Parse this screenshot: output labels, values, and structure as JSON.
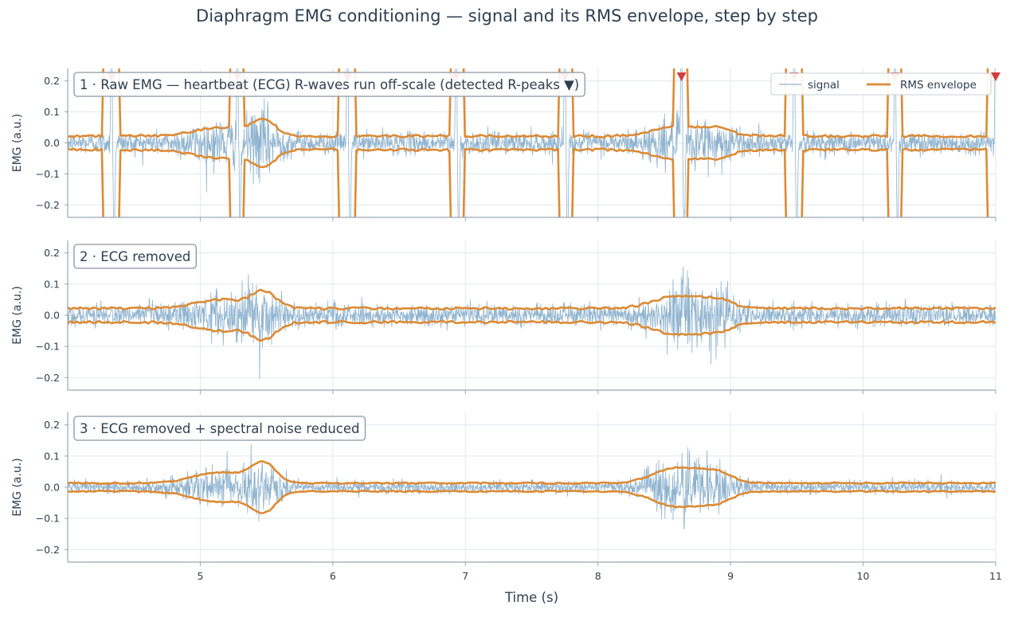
{
  "title": "Diaphragm EMG conditioning — signal and its RMS envelope, step by step",
  "colors": {
    "signal": "#8fb3cf",
    "envelope": "#dd8a34",
    "rpeak": "#d33d3d",
    "text": "#2e3f52",
    "grid": "#e3e8ee",
    "axis": "#9aa7b3"
  },
  "legend": {
    "signal_label": "signal",
    "envelope_label": "RMS envelope",
    "placement": "top-right (panel 1)"
  },
  "chart_data": [
    {
      "type": "line",
      "panel_label": "1 · Raw EMG — heartbeat (ECG) R-waves run off-scale (detected R-peaks ▼)",
      "ylabel": "EMG (a.u.)",
      "xlabel": "",
      "xlim": [
        4,
        11
      ],
      "ylim": [
        -0.24,
        0.24
      ],
      "yticks": [
        -0.2,
        -0.1,
        0.0,
        0.1,
        0.2
      ],
      "ytick_labels": [
        "−0.2",
        "−0.1",
        "0.0",
        "0.1",
        "0.2"
      ],
      "grid": true,
      "noise_scale": 0.018,
      "env_base": 0.022,
      "bursts": [
        {
          "center": 5.15,
          "width": 0.28,
          "amp": 0.028
        },
        {
          "center": 5.48,
          "width": 0.13,
          "amp": 0.045
        },
        {
          "center": 8.6,
          "width": 0.25,
          "amp": 0.03
        },
        {
          "center": 8.9,
          "width": 0.16,
          "amp": 0.022
        }
      ],
      "r_peaks": [
        4.33,
        5.28,
        6.11,
        6.93,
        7.75,
        8.63,
        9.48,
        10.24,
        11.0
      ],
      "series": [
        {
          "name": "signal",
          "role": "signal"
        },
        {
          "name": "RMS envelope",
          "role": "envelope"
        }
      ]
    },
    {
      "type": "line",
      "panel_label": "2 · ECG removed",
      "ylabel": "EMG (a.u.)",
      "xlabel": "",
      "xlim": [
        4,
        11
      ],
      "ylim": [
        -0.24,
        0.24
      ],
      "yticks": [
        -0.2,
        -0.1,
        0.0,
        0.1,
        0.2
      ],
      "ytick_labels": [
        "−0.2",
        "−0.1",
        "0.0",
        "0.1",
        "0.2"
      ],
      "grid": true,
      "noise_scale": 0.018,
      "env_base": 0.022,
      "bursts": [
        {
          "center": 5.15,
          "width": 0.28,
          "amp": 0.028
        },
        {
          "center": 5.48,
          "width": 0.13,
          "amp": 0.05
        },
        {
          "center": 8.6,
          "width": 0.25,
          "amp": 0.04
        },
        {
          "center": 8.9,
          "width": 0.16,
          "amp": 0.025
        }
      ],
      "r_peaks": [],
      "series": [
        {
          "name": "signal",
          "role": "signal"
        },
        {
          "name": "RMS envelope",
          "role": "envelope"
        }
      ]
    },
    {
      "type": "line",
      "panel_label": "3 · ECG removed + spectral noise reduced",
      "ylabel": "EMG (a.u.)",
      "xlabel": "Time (s)",
      "xlim": [
        4,
        11
      ],
      "ylim": [
        -0.24,
        0.24
      ],
      "yticks": [
        -0.2,
        -0.1,
        0.0,
        0.1,
        0.2
      ],
      "ytick_labels": [
        "−0.2",
        "−0.1",
        "0.0",
        "0.1",
        "0.2"
      ],
      "xticks": [
        5,
        6,
        7,
        8,
        9,
        10,
        11
      ],
      "xtick_labels": [
        "5",
        "6",
        "7",
        "8",
        "9",
        "10",
        "11"
      ],
      "grid": true,
      "noise_scale": 0.01,
      "env_base": 0.013,
      "bursts": [
        {
          "center": 5.15,
          "width": 0.28,
          "amp": 0.035
        },
        {
          "center": 5.48,
          "width": 0.13,
          "amp": 0.06
        },
        {
          "center": 8.6,
          "width": 0.25,
          "amp": 0.05
        },
        {
          "center": 8.9,
          "width": 0.16,
          "amp": 0.03
        }
      ],
      "r_peaks": [],
      "series": [
        {
          "name": "signal",
          "role": "signal"
        },
        {
          "name": "RMS envelope",
          "role": "envelope"
        }
      ]
    }
  ]
}
